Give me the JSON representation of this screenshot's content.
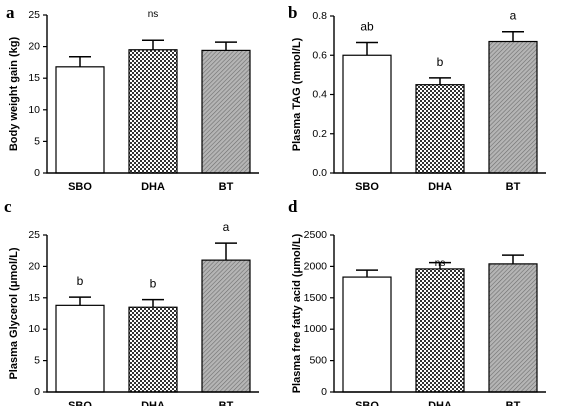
{
  "chart_data": [
    {
      "panel": "a",
      "type": "bar",
      "ylabel": "Body weight gain (kg)",
      "categories": [
        "SBO",
        "DHA",
        "BT"
      ],
      "values": [
        16.8,
        19.5,
        19.4
      ],
      "errors": [
        1.6,
        1.5,
        1.3
      ],
      "ylim": [
        0,
        25
      ],
      "yticks": [
        0,
        5,
        10,
        15,
        20,
        25
      ],
      "annotations": [],
      "overall_label": "ns"
    },
    {
      "panel": "b",
      "type": "bar",
      "ylabel": "Plasma  TAG (mmol/L)",
      "categories": [
        "SBO",
        "DHA",
        "BT"
      ],
      "values": [
        0.6,
        0.45,
        0.67
      ],
      "errors": [
        0.065,
        0.035,
        0.05
      ],
      "ylim": [
        0,
        0.8
      ],
      "yticks": [
        0.0,
        0.2,
        0.4,
        0.6,
        0.8
      ],
      "ytick_labels": [
        "0.0",
        "0.2",
        "0.4",
        "0.6",
        "0.8"
      ],
      "annotations": [
        "ab",
        "b",
        "a"
      ],
      "overall_label": ""
    },
    {
      "panel": "c",
      "type": "bar",
      "ylabel": "Plasma Glycerol (μmol/L)",
      "categories": [
        "SBO",
        "DHA",
        "BT"
      ],
      "values": [
        13.8,
        13.5,
        21.0
      ],
      "errors": [
        1.3,
        1.2,
        2.7
      ],
      "ylim": [
        0,
        25
      ],
      "yticks": [
        0,
        5,
        10,
        15,
        20,
        25
      ],
      "annotations": [
        "b",
        "b",
        "a"
      ],
      "overall_label": ""
    },
    {
      "panel": "d",
      "type": "bar",
      "ylabel": "Plasma  free fatty acid (μmol/L)",
      "categories": [
        "SBO",
        "DHA",
        "BT"
      ],
      "values": [
        1830,
        1960,
        2040
      ],
      "errors": [
        110,
        100,
        140
      ],
      "ylim": [
        0,
        2500
      ],
      "yticks": [
        0,
        500,
        1000,
        1500,
        2000,
        2500
      ],
      "annotations": [],
      "overall_label": "ns"
    }
  ],
  "colors": {
    "sbo_fill": "#ffffff",
    "dha_pattern": "checkered",
    "bt_pattern": "diagonal-grey"
  }
}
